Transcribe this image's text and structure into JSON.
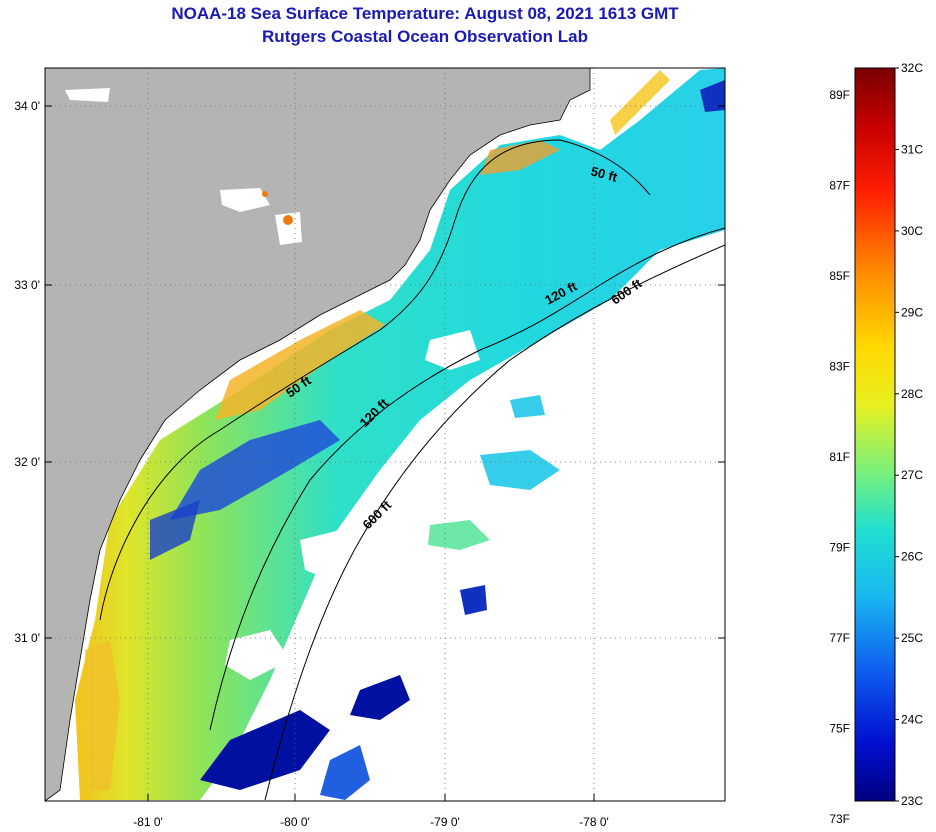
{
  "title": {
    "line1": "NOAA-18 Sea Surface Temperature:  August 08, 2021 1613 GMT",
    "line2": "Rutgers Coastal Ocean Observation Lab"
  },
  "map": {
    "lat_labels": [
      "34 0'",
      "33 0'",
      "32 0'",
      "31 0'"
    ],
    "lon_labels": [
      "-81 0'",
      "-80 0'",
      "-79 0'",
      "-78 0'"
    ],
    "contours": [
      "50 ft",
      "120 ft",
      "600 ft"
    ],
    "colors": {
      "land": "#b4b4b4",
      "cloud": "#ffffff"
    }
  },
  "colorbar": {
    "fahrenheit_labels": [
      "89F",
      "87F",
      "85F",
      "83F",
      "81F",
      "79F",
      "77F",
      "75F",
      "73F"
    ],
    "celsius_labels": [
      "32C",
      "31C",
      "30C",
      "29C",
      "28C",
      "27C",
      "26C",
      "25C",
      "24C",
      "23C"
    ],
    "range_c": [
      23,
      32
    ]
  }
}
